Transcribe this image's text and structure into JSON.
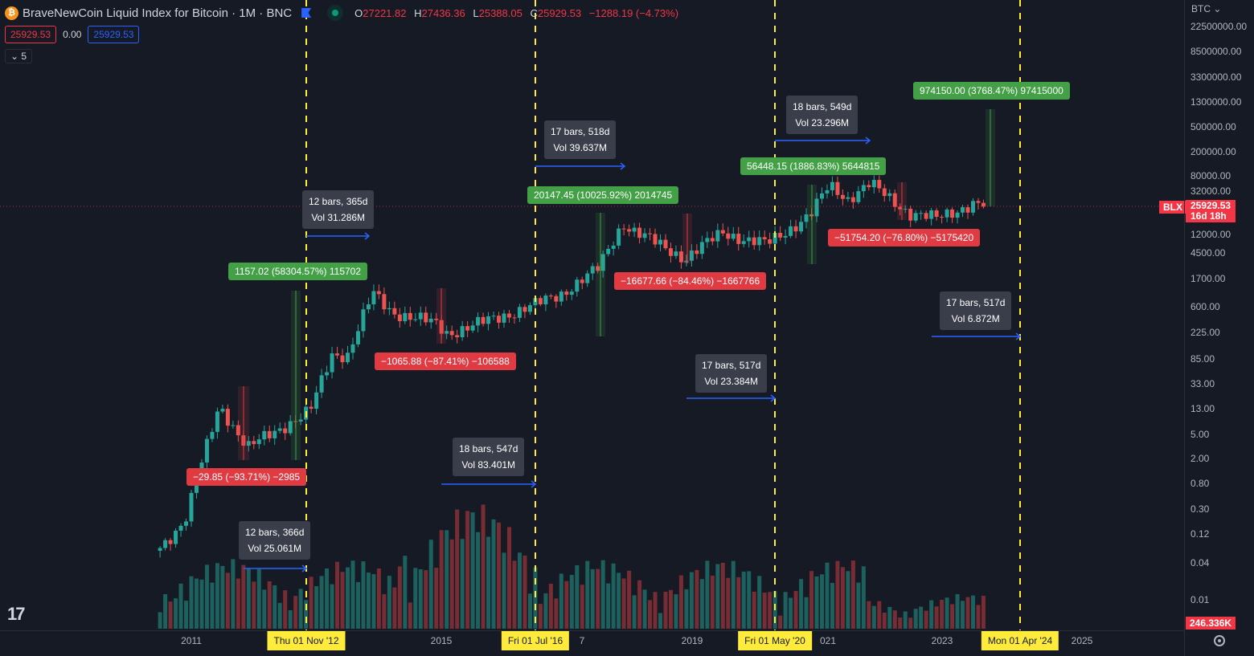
{
  "header": {
    "title": "BraveNewCoin Liquid Index for Bitcoin · 1M · BNC",
    "open_label": "O",
    "open": "27221.82",
    "high_label": "H",
    "high": "27436.36",
    "low_label": "L",
    "low": "25388.05",
    "close_label": "C",
    "close": "25929.53",
    "change": "−1288.19 (−4.73%)",
    "bid": "25929.53",
    "spread": "0.00",
    "ask": "25929.53",
    "collapse": "5"
  },
  "axis": {
    "currency": "BTC",
    "ticks": [
      "22500000.00",
      "8500000.00",
      "3300000.00",
      "1300000.00",
      "500000.00",
      "200000.00",
      "80000.00",
      "32000.00",
      "12000.00",
      "4500.00",
      "1700.00",
      "600.00",
      "225.00",
      "85.00",
      "33.00",
      "13.00",
      "5.00",
      "2.00",
      "0.80",
      "0.30",
      "0.12",
      "0.04",
      "0.01"
    ],
    "symbol_tag": "BLX",
    "last_price": "25929.53",
    "countdown": "16d 18h",
    "volume": "246.336K"
  },
  "xaxis": {
    "ticks": [
      "2011",
      "2015",
      "2019",
      "2023",
      "2025"
    ],
    "partial_ticks": [
      "7",
      "021"
    ],
    "highlights": [
      "Thu 01 Nov '12",
      "Fri 01 Jul '16",
      "Fri 01 May '20",
      "Mon 01 Apr '24"
    ]
  },
  "price_ranges": [
    {
      "text": "1157.02 (58304.57%) 115702",
      "type": "up"
    },
    {
      "text": "−29.85 (−93.71%) −2985",
      "type": "down"
    },
    {
      "text": "−1065.88 (−87.41%) −106588",
      "type": "down"
    },
    {
      "text": "20147.45 (10025.92%) 2014745",
      "type": "up"
    },
    {
      "text": "−16677.66 (−84.46%) −1667766",
      "type": "down"
    },
    {
      "text": "56448.15 (1886.83%) 5644815",
      "type": "up"
    },
    {
      "text": "−51754.20 (−76.80%) −5175420",
      "type": "down"
    },
    {
      "text": "974150.00 (3768.47%) 97415000",
      "type": "up"
    }
  ],
  "date_ranges": [
    {
      "bars": "12 bars, 366d",
      "vol": "Vol 25.061M"
    },
    {
      "bars": "12 bars, 365d",
      "vol": "Vol 31.286M"
    },
    {
      "bars": "18 bars, 547d",
      "vol": "Vol 83.401M"
    },
    {
      "bars": "17 bars, 518d",
      "vol": "Vol 39.637M"
    },
    {
      "bars": "17 bars, 517d",
      "vol": "Vol 23.384M"
    },
    {
      "bars": "18 bars, 549d",
      "vol": "Vol 23.296M"
    },
    {
      "bars": "17 bars, 517d",
      "vol": "Vol 6.872M"
    }
  ],
  "colors": {
    "up": "#26a69a",
    "down": "#ef5350",
    "marker": "#ffeb3b",
    "background": "#161a25"
  },
  "chart_data": {
    "type": "candlestick",
    "scale": "log",
    "price_anchors": [
      [
        2010.5,
        0.07
      ],
      [
        2010.9,
        0.2
      ],
      [
        2011.1,
        1
      ],
      [
        2011.45,
        15
      ],
      [
        2011.9,
        3
      ],
      [
        2012.5,
        7
      ],
      [
        2012.9,
        12
      ],
      [
        2013.25,
        100
      ],
      [
        2013.5,
        100
      ],
      [
        2013.9,
        1000
      ],
      [
        2014.2,
        500
      ],
      [
        2014.9,
        320
      ],
      [
        2015.1,
        220
      ],
      [
        2015.9,
        400
      ],
      [
        2016.5,
        650
      ],
      [
        2016.9,
        960
      ],
      [
        2017.5,
        2500
      ],
      [
        2017.9,
        14000
      ],
      [
        2018.1,
        10000
      ],
      [
        2018.9,
        3700
      ],
      [
        2019.5,
        10000
      ],
      [
        2019.9,
        7200
      ],
      [
        2020.2,
        6400
      ],
      [
        2020.9,
        19000
      ],
      [
        2021.2,
        58000
      ],
      [
        2021.5,
        35000
      ],
      [
        2021.85,
        61000
      ],
      [
        2022.5,
        20000
      ],
      [
        2022.9,
        16500
      ],
      [
        2023.5,
        29000
      ],
      [
        2023.67,
        25929.53
      ]
    ]
  }
}
